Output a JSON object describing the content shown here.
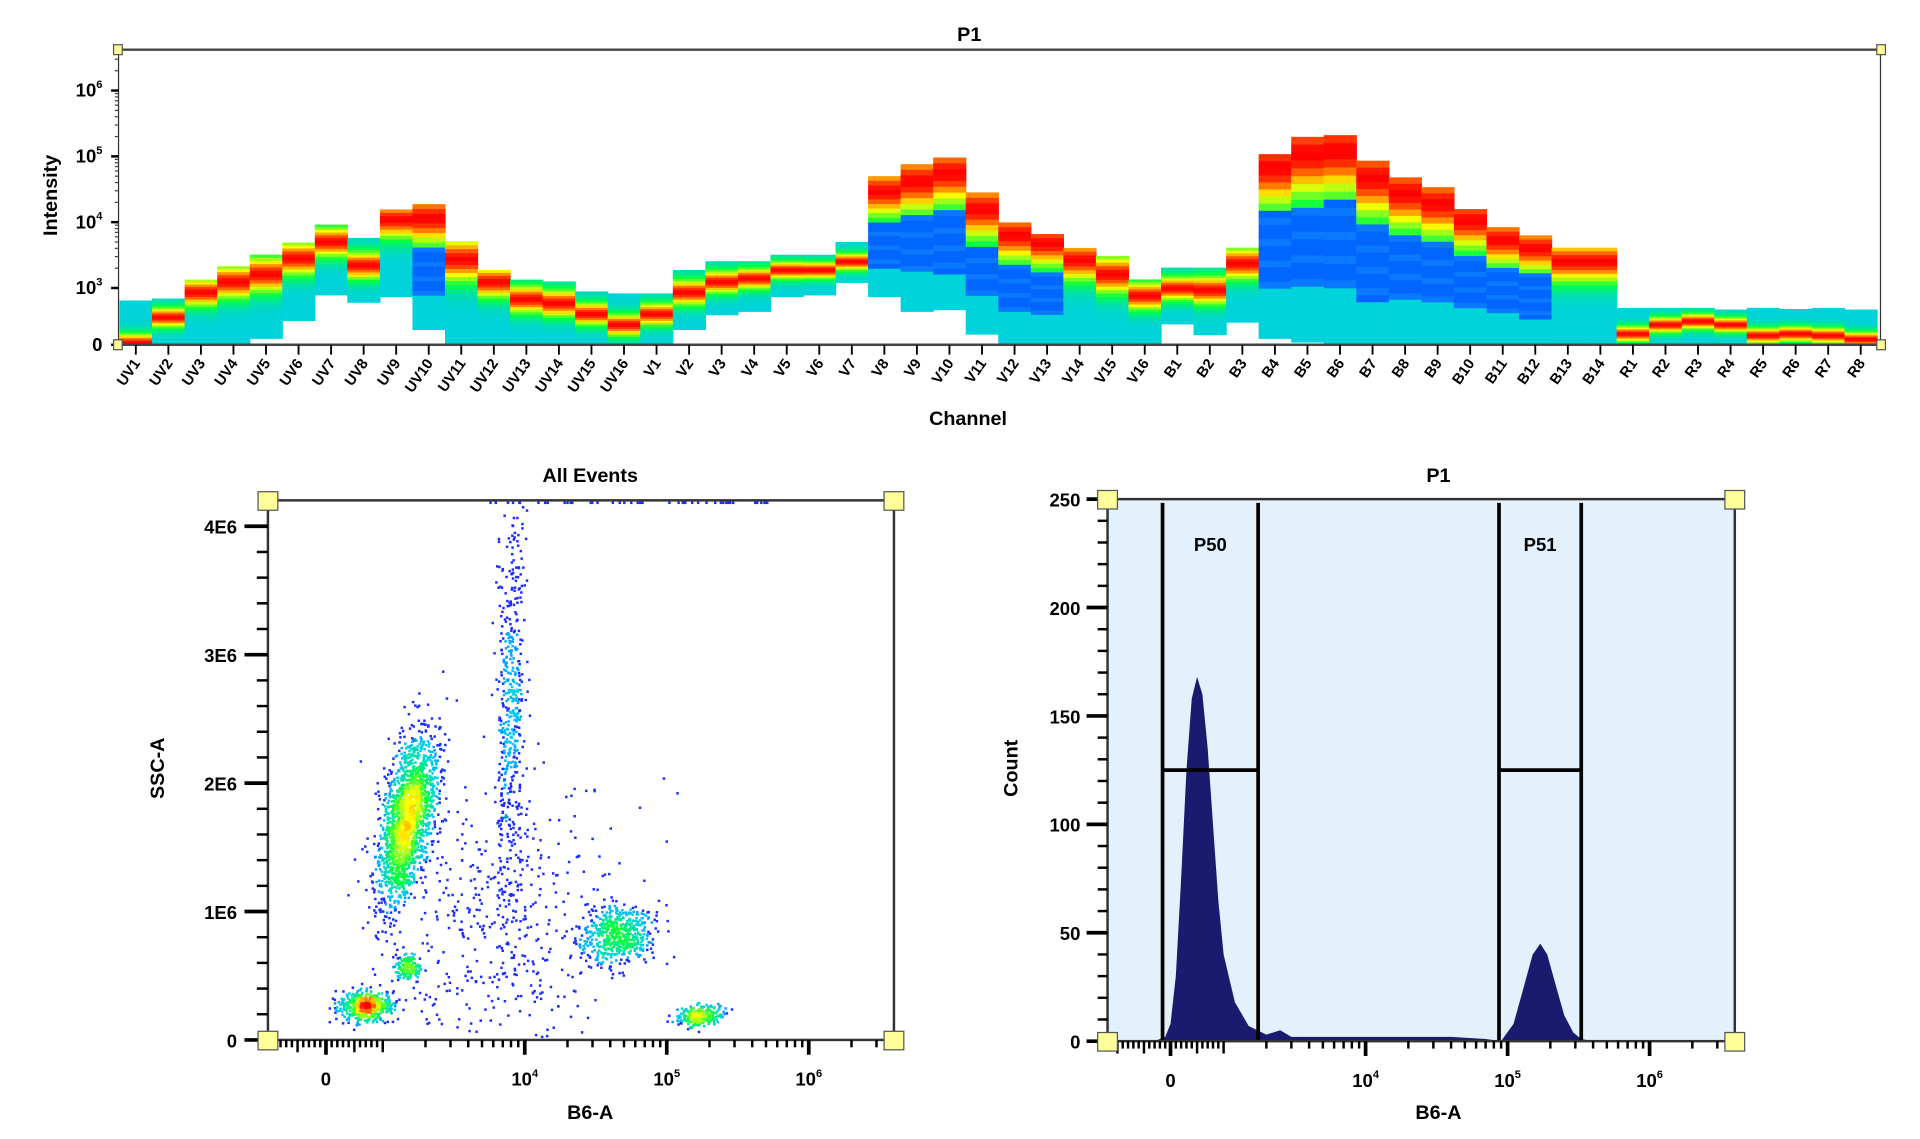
{
  "colors": {
    "density_ramp": [
      "#0033ff",
      "#00c8ff",
      "#00ff40",
      "#ffff00",
      "#ff0000"
    ],
    "histogram_fill": "#1a1a6e",
    "histogram_bg": "#e2f1fc",
    "handle": "#ffff99"
  },
  "chart_data": [
    {
      "type": "heatmap",
      "title": "P1",
      "xlabel": "Channel",
      "ylabel": "Intensity",
      "yscale": "biexponential",
      "yticks": [
        {
          "base": "10",
          "exp": "6"
        },
        {
          "base": "10",
          "exp": "5"
        },
        {
          "base": "10",
          "exp": "4"
        },
        {
          "base": "10",
          "exp": "3"
        },
        {
          "base": "0",
          "exp": ""
        }
      ],
      "ytick_values": [
        1000000,
        100000,
        10000,
        1000,
        0
      ],
      "channels": [
        {
          "name": "UV1",
          "min": 0,
          "median": 30,
          "max": 780
        },
        {
          "name": "UV2",
          "min": 0,
          "median": 480,
          "max": 815
        },
        {
          "name": "UV3",
          "min": 0,
          "median": 920,
          "max": 1340
        },
        {
          "name": "UV4",
          "min": 10,
          "median": 1230,
          "max": 2140
        },
        {
          "name": "UV5",
          "min": 115,
          "median": 1600,
          "max": 3220
        },
        {
          "name": "UV6",
          "min": 430,
          "median": 2800,
          "max": 4900
        },
        {
          "name": "UV7",
          "min": 880,
          "median": 5000,
          "max": 9200
        },
        {
          "name": "UV8",
          "min": 750,
          "median": 2200,
          "max": 5770
        },
        {
          "name": "UV9",
          "min": 850,
          "median": 10800,
          "max": 15600
        },
        {
          "name": "UV10",
          "min": 270,
          "median": 11400,
          "max": 18800,
          "blue_body": true
        },
        {
          "name": "UV11",
          "min": 0,
          "median": 2700,
          "max": 5140
        },
        {
          "name": "UV12",
          "min": 0,
          "median": 1230,
          "max": 1870
        },
        {
          "name": "UV13",
          "min": 0,
          "median": 800,
          "max": 1340
        },
        {
          "name": "UV14",
          "min": 0,
          "median": 730,
          "max": 1260
        },
        {
          "name": "UV15",
          "min": 0,
          "median": 540,
          "max": 940
        },
        {
          "name": "UV16",
          "min": 0,
          "median": 350,
          "max": 905
        },
        {
          "name": "V1",
          "min": 0,
          "median": 540,
          "max": 905
        },
        {
          "name": "V2",
          "min": 270,
          "median": 920,
          "max": 1880
        },
        {
          "name": "V3",
          "min": 530,
          "median": 1230,
          "max": 2550
        },
        {
          "name": "V4",
          "min": 590,
          "median": 1390,
          "max": 2550
        },
        {
          "name": "V5",
          "min": 850,
          "median": 1860,
          "max": 3200
        },
        {
          "name": "V6",
          "min": 880,
          "median": 1860,
          "max": 3200
        },
        {
          "name": "V7",
          "min": 1220,
          "median": 2500,
          "max": 5000
        },
        {
          "name": "V8",
          "min": 850,
          "median": 29000,
          "max": 50000,
          "blue_body": true
        },
        {
          "name": "V9",
          "min": 590,
          "median": 41000,
          "max": 76000,
          "blue_body": true
        },
        {
          "name": "V10",
          "min": 620,
          "median": 55000,
          "max": 96000,
          "blue_body": true
        },
        {
          "name": "V11",
          "min": 190,
          "median": 15500,
          "max": 28300,
          "blue_body": true
        },
        {
          "name": "V12",
          "min": 0,
          "median": 6300,
          "max": 9900,
          "blue_body": true
        },
        {
          "name": "V13",
          "min": 0,
          "median": 4700,
          "max": 6600,
          "blue_body": true
        },
        {
          "name": "V14",
          "min": 0,
          "median": 2630,
          "max": 4060
        },
        {
          "name": "V15",
          "min": 0,
          "median": 1600,
          "max": 3070
        },
        {
          "name": "V16",
          "min": 0,
          "median": 860,
          "max": 1350
        },
        {
          "name": "B1",
          "min": 370,
          "median": 990,
          "max": 2040
        },
        {
          "name": "B2",
          "min": 180,
          "median": 960,
          "max": 2040
        },
        {
          "name": "B3",
          "min": 400,
          "median": 2350,
          "max": 4100
        },
        {
          "name": "B4",
          "min": 115,
          "median": 66000,
          "max": 108000,
          "blue_body": true
        },
        {
          "name": "B5",
          "min": 50,
          "median": 105000,
          "max": 198000,
          "blue_body": true
        },
        {
          "name": "B6",
          "min": 0,
          "median": 118000,
          "max": 210000,
          "blue_body": true
        },
        {
          "name": "B7",
          "min": 0,
          "median": 46000,
          "max": 86000,
          "blue_body": true
        },
        {
          "name": "B8",
          "min": 0,
          "median": 27000,
          "max": 48000,
          "blue_body": true
        },
        {
          "name": "B9",
          "min": 0,
          "median": 19000,
          "max": 34000,
          "blue_body": true
        },
        {
          "name": "B10",
          "min": 0,
          "median": 10400,
          "max": 15800,
          "blue_body": true
        },
        {
          "name": "B11",
          "min": 0,
          "median": 5300,
          "max": 8400,
          "blue_body": true
        },
        {
          "name": "B12",
          "min": 0,
          "median": 3970,
          "max": 6300,
          "blue_body": true
        },
        {
          "name": "B13",
          "min": 0,
          "median": 2500,
          "max": 4100
        },
        {
          "name": "B14",
          "min": 0,
          "median": 2500,
          "max": 4100
        },
        {
          "name": "R1",
          "min": 0,
          "median": 190,
          "max": 650
        },
        {
          "name": "R2",
          "min": 0,
          "median": 350,
          "max": 650
        },
        {
          "name": "R3",
          "min": 0,
          "median": 410,
          "max": 650
        },
        {
          "name": "R4",
          "min": 0,
          "median": 350,
          "max": 620
        },
        {
          "name": "R5",
          "min": 0,
          "median": 160,
          "max": 650
        },
        {
          "name": "R6",
          "min": 0,
          "median": 190,
          "max": 630
        },
        {
          "name": "R7",
          "min": 0,
          "median": 160,
          "max": 650
        },
        {
          "name": "R8",
          "min": 0,
          "median": 95,
          "max": 620
        }
      ]
    },
    {
      "type": "scatter",
      "title": "All Events",
      "xlabel": "B6-A",
      "ylabel": "SSC-A",
      "xscale": "biexponential",
      "xticks": [
        {
          "base": "0",
          "exp": "",
          "value": 0
        },
        {
          "base": "10",
          "exp": "4",
          "value": 10000
        },
        {
          "base": "10",
          "exp": "5",
          "value": 100000
        },
        {
          "base": "10",
          "exp": "6",
          "value": 1000000
        }
      ],
      "yticks": [
        {
          "label": "0",
          "value": 0
        },
        {
          "label": "1E6",
          "value": 1000000
        },
        {
          "label": "2E6",
          "value": 2000000
        },
        {
          "label": "3E6",
          "value": 3000000
        },
        {
          "label": "4E6",
          "value": 4000000
        }
      ],
      "ylim": [
        0,
        4200000
      ],
      "populations": [
        {
          "x_center": 1500,
          "y_center": 1720000,
          "x_sd_decades": 0.1,
          "y_sd": 330000,
          "correlation": 0.55,
          "n": 1900
        },
        {
          "x_center": 720,
          "y_center": 260000,
          "x_sd_decades": 0.09,
          "y_sd": 60000,
          "correlation": 0,
          "n": 520
        },
        {
          "x_center": 8000,
          "y_center": 2500000,
          "x_sd_decades": 0.05,
          "y_sd": 850000,
          "correlation": 0.2,
          "n": 520
        },
        {
          "x_center": 45000,
          "y_center": 820000,
          "x_sd_decades": 0.13,
          "y_sd": 110000,
          "correlation": 0,
          "n": 560
        },
        {
          "x_center": 170000,
          "y_center": 190000,
          "x_sd_decades": 0.08,
          "y_sd": 40000,
          "correlation": 0.3,
          "n": 260
        },
        {
          "x_center": 1500,
          "y_center": 560000,
          "x_sd_decades": 0.05,
          "y_sd": 50000,
          "correlation": 0,
          "n": 160
        },
        {
          "x_center": 6000,
          "y_center": 900000,
          "x_sd_decades": 0.45,
          "y_sd": 600000,
          "correlation": 0,
          "n": 450
        }
      ]
    },
    {
      "type": "area",
      "title": "P1",
      "xlabel": "B6-A",
      "ylabel": "Count",
      "xscale": "biexponential",
      "xticks": [
        {
          "base": "0",
          "exp": "",
          "value": 0
        },
        {
          "base": "10",
          "exp": "4",
          "value": 10000
        },
        {
          "base": "10",
          "exp": "5",
          "value": 100000
        },
        {
          "base": "10",
          "exp": "6",
          "value": 1000000
        }
      ],
      "yticks": [
        0,
        50,
        100,
        150,
        200,
        250
      ],
      "ylim": [
        0,
        250
      ],
      "points": [
        [
          -300,
          0
        ],
        [
          -100,
          2
        ],
        [
          0,
          8
        ],
        [
          100,
          30
        ],
        [
          200,
          75
        ],
        [
          300,
          125
        ],
        [
          400,
          158
        ],
        [
          500,
          168
        ],
        [
          600,
          160
        ],
        [
          700,
          135
        ],
        [
          800,
          100
        ],
        [
          900,
          65
        ],
        [
          1000,
          40
        ],
        [
          1200,
          18
        ],
        [
          1500,
          7
        ],
        [
          2000,
          3
        ],
        [
          2500,
          5
        ],
        [
          3000,
          2
        ],
        [
          5000,
          2
        ],
        [
          10000,
          2
        ],
        [
          20000,
          2
        ],
        [
          40000,
          2
        ],
        [
          70000,
          1
        ],
        [
          90000,
          0
        ],
        [
          110000,
          8
        ],
        [
          130000,
          25
        ],
        [
          150000,
          40
        ],
        [
          170000,
          45
        ],
        [
          190000,
          40
        ],
        [
          220000,
          25
        ],
        [
          250000,
          12
        ],
        [
          290000,
          4
        ],
        [
          330000,
          1
        ],
        [
          400000,
          0
        ]
      ],
      "gates": [
        {
          "label": "P50",
          "x_min": -150,
          "x_max": 1750,
          "level": 125
        },
        {
          "label": "P51",
          "x_min": 87000,
          "x_max": 330000,
          "level": 125
        }
      ]
    }
  ]
}
